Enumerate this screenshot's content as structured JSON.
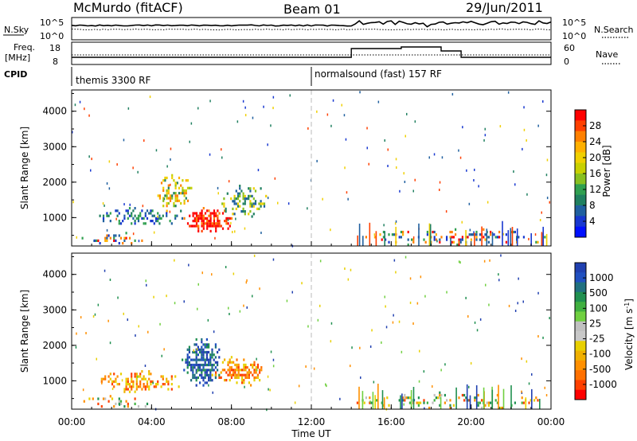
{
  "header": {
    "station": "McMurdo (fitACF)",
    "beam": "Beam 01",
    "date": "29/Jun/2011"
  },
  "summary_panels": {
    "nsky": {
      "label": "N.Sky",
      "left_ticks": [
        "10^5",
        "10^0"
      ],
      "right_ticks": [
        "10^5",
        "10^0"
      ],
      "right_label": "N.Search"
    },
    "freq": {
      "label_line1": "Freq.",
      "label_line2": "[MHz]",
      "left_ticks": [
        "18",
        "8"
      ],
      "right_ticks": [
        "60",
        "0"
      ],
      "right_label": "Nave"
    },
    "cpid": {
      "label": "CPID",
      "modes": [
        {
          "name": "themis 3300 RF",
          "start_hour": 0
        },
        {
          "name": "normalsound (fast) 157 RF",
          "start_hour": 12
        }
      ]
    }
  },
  "colorbars": {
    "power": {
      "label": "Power [dB]",
      "ticks": [
        "28",
        "24",
        "20",
        "16",
        "12",
        "8",
        "4"
      ],
      "colors": [
        "#ff0000",
        "#ff4000",
        "#ff8000",
        "#ffb000",
        "#f0d000",
        "#c8d000",
        "#88c020",
        "#30a050",
        "#208060",
        "#2060a0",
        "#1838d0",
        "#0010ff"
      ]
    },
    "velocity": {
      "label": "Velocity [m s^-1]",
      "label_main": "Velocity [m s",
      "label_sup": "-1",
      "label_end": "]",
      "ticks": [
        "1000",
        "500",
        "100",
        "25",
        "-25",
        "-100",
        "-500",
        "-1000"
      ],
      "colors": [
        "#2040b0",
        "#2050c0",
        "#207080",
        "#209050",
        "#40b040",
        "#70d040",
        "#c0c0c0",
        "#c8c8c8",
        "#e8d000",
        "#f0b000",
        "#ff9000",
        "#ff7000",
        "#ff4000",
        "#ff0000"
      ]
    }
  },
  "chart_data": [
    {
      "type": "heatmap",
      "name": "power",
      "ylabel": "Slant Range [km]",
      "ylim": [
        200,
        4600
      ],
      "xlim": [
        0,
        24
      ],
      "yticks": [
        "4000",
        "3000",
        "2000",
        "1000"
      ],
      "regions": [
        {
          "x0": 5.6,
          "x1": 8.0,
          "y0": 600,
          "y1": 1300,
          "level": "high",
          "density": 0.9
        },
        {
          "x0": 4.2,
          "x1": 6.0,
          "y0": 1200,
          "y1": 2300,
          "level": "mid",
          "density": 0.55
        },
        {
          "x0": 7.5,
          "x1": 9.8,
          "y0": 1000,
          "y1": 2000,
          "level": "lowmid",
          "density": 0.45
        },
        {
          "x0": 1.2,
          "x1": 5.5,
          "y0": 800,
          "y1": 1300,
          "level": "low",
          "density": 0.5
        },
        {
          "x0": 0.5,
          "x1": 4.0,
          "y0": 250,
          "y1": 600,
          "level": "mixed",
          "density": 0.35
        },
        {
          "x0": 14,
          "x1": 24,
          "y0": 250,
          "y1": 700,
          "level": "mixed",
          "density": 0.3
        }
      ]
    },
    {
      "type": "heatmap",
      "name": "velocity",
      "ylabel": "Slant Range [km]",
      "xlabel": "Time UT",
      "ylim": [
        200,
        4600
      ],
      "xlim": [
        0,
        24
      ],
      "yticks": [
        "4000",
        "3000",
        "2000",
        "1000"
      ],
      "xticks": [
        "00:00",
        "04:00",
        "08:00",
        "12:00",
        "16:00",
        "20:00",
        "00:00"
      ],
      "regions": [
        {
          "x0": 5.5,
          "x1": 7.5,
          "y0": 900,
          "y1": 2200,
          "level": "toward",
          "density": 0.8
        },
        {
          "x0": 7.0,
          "x1": 9.8,
          "y0": 900,
          "y1": 1700,
          "level": "away",
          "density": 0.6
        },
        {
          "x0": 1.2,
          "x1": 5.5,
          "y0": 700,
          "y1": 1300,
          "level": "away",
          "density": 0.5
        },
        {
          "x0": 0.5,
          "x1": 4.0,
          "y0": 250,
          "y1": 600,
          "level": "mixed",
          "density": 0.35
        },
        {
          "x0": 14,
          "x1": 24,
          "y0": 250,
          "y1": 700,
          "level": "mixed",
          "density": 0.3
        }
      ]
    }
  ]
}
